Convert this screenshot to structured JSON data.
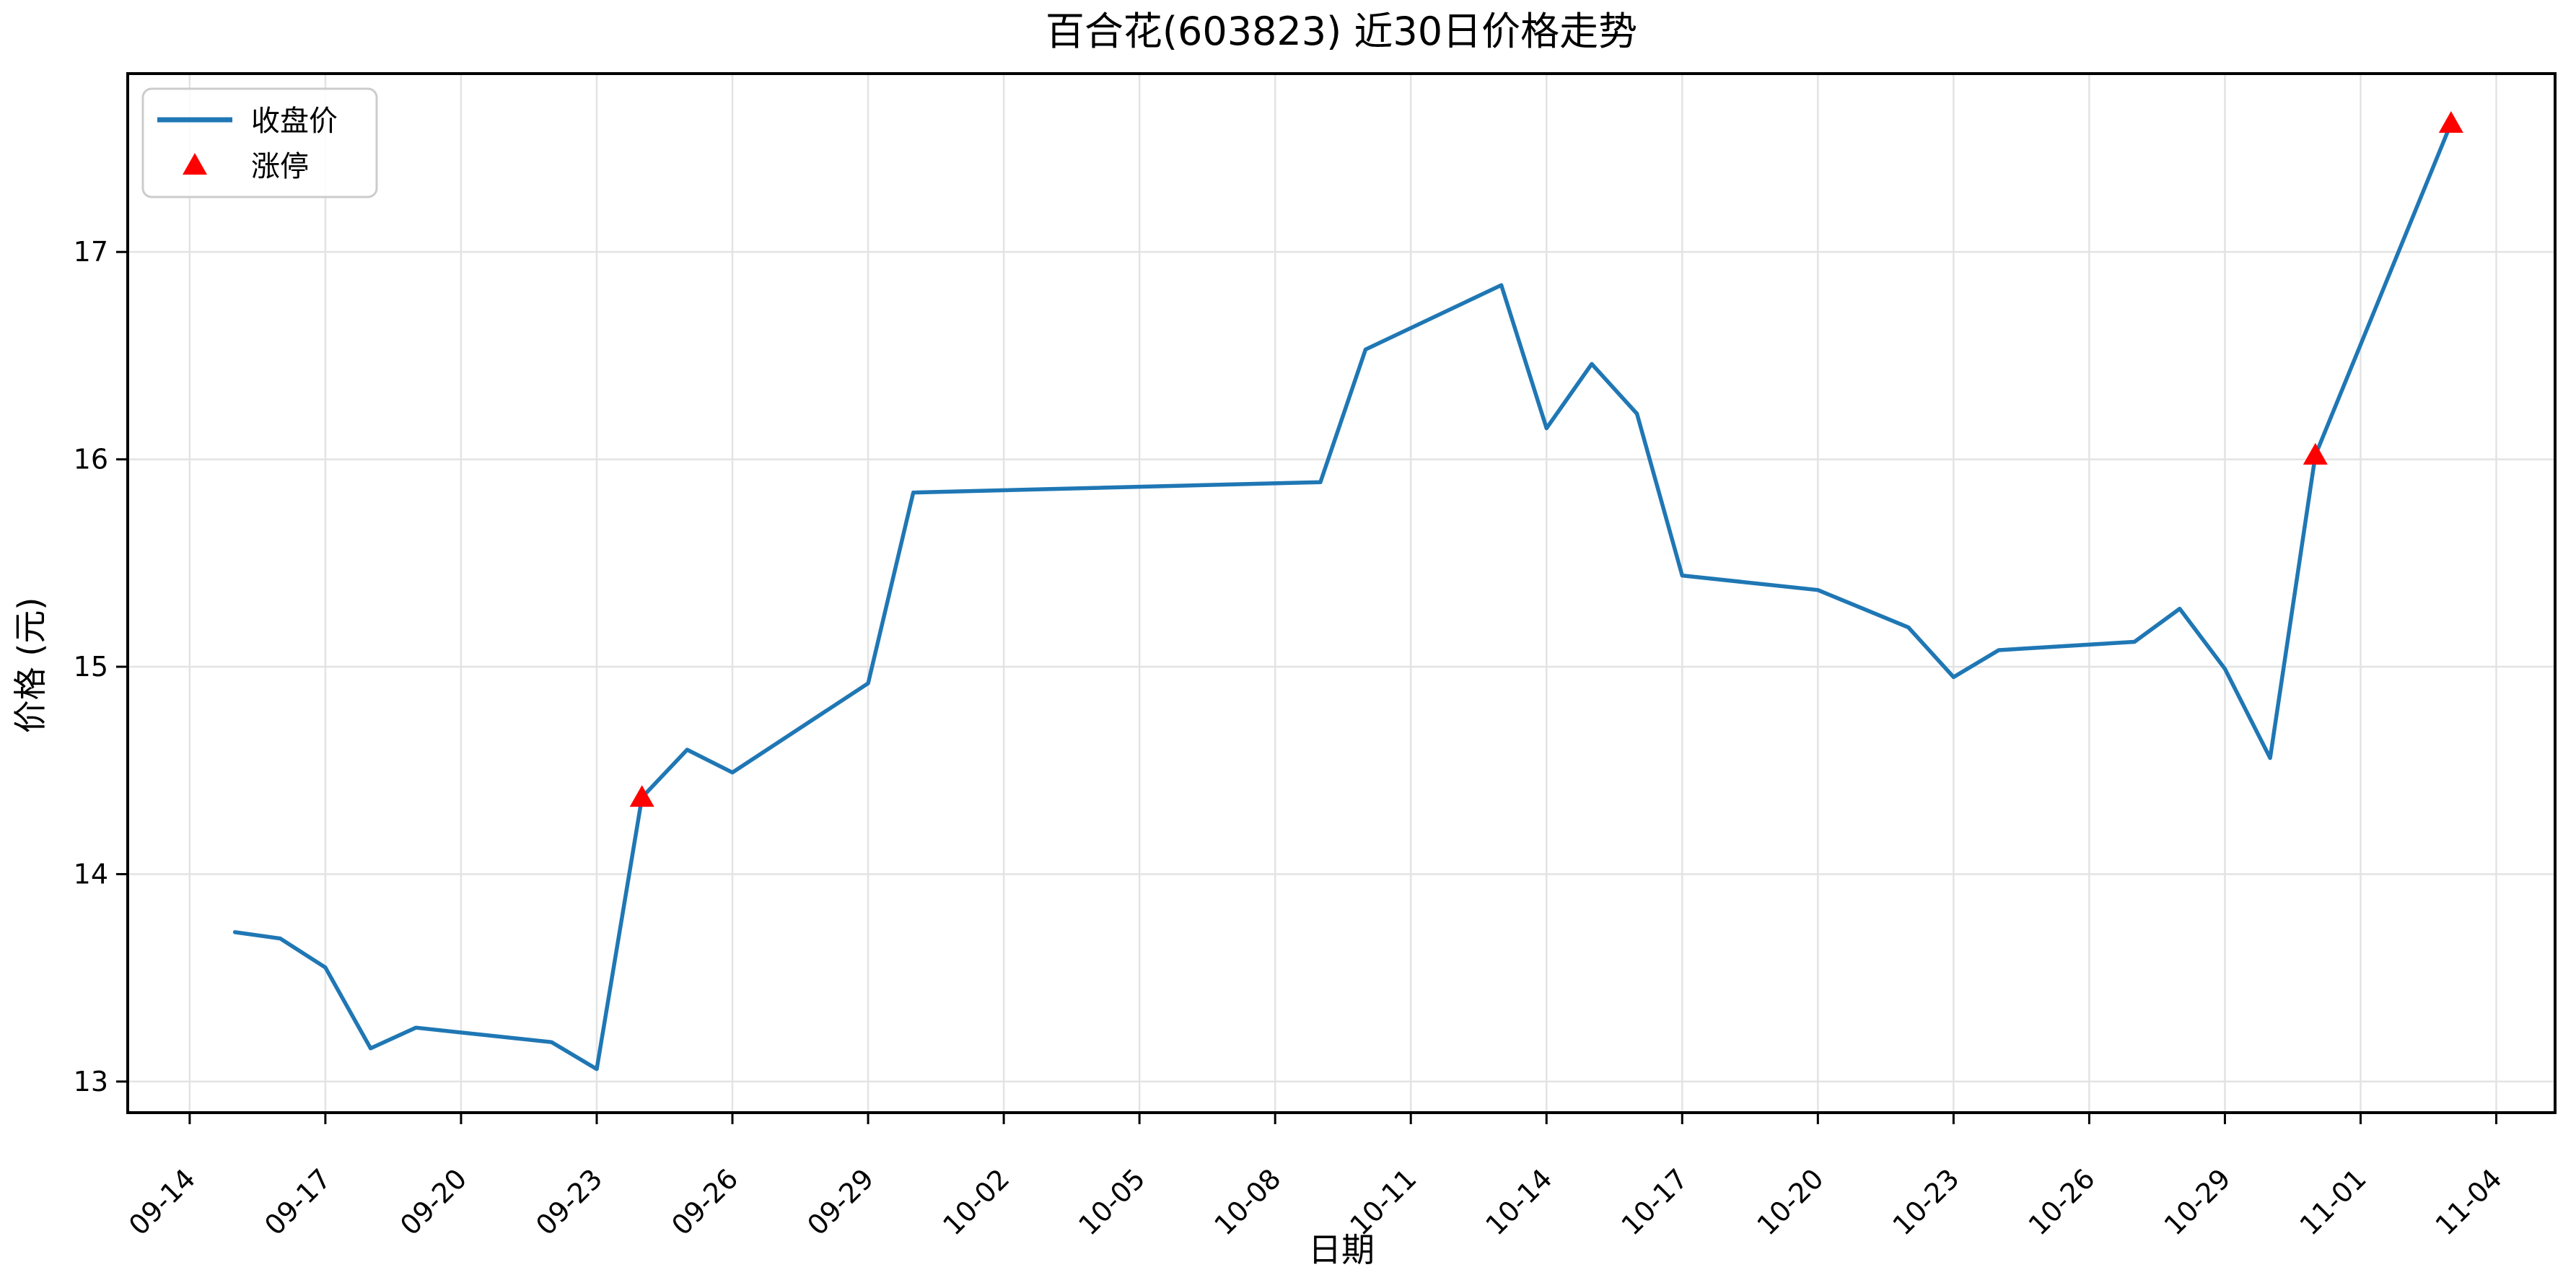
{
  "page": {
    "background": "#ffffff"
  },
  "chart_data": {
    "type": "line",
    "title": "百合花(603823) 近30日价格走势",
    "xlabel": "日期",
    "ylabel": "价格 (元)",
    "legend_labels": [
      "收盘价",
      "涨停"
    ],
    "legend_position": "upper left",
    "grid": true,
    "yticks": [
      13,
      14,
      15,
      16,
      17
    ],
    "ylim": [
      12.85,
      17.86
    ],
    "xlim_days": [
      -1.37,
      52.3
    ],
    "xticks": [
      "09-14",
      "09-17",
      "09-20",
      "09-23",
      "09-26",
      "09-29",
      "10-02",
      "10-05",
      "10-08",
      "10-11",
      "10-14",
      "10-17",
      "10-20",
      "10-23",
      "10-26",
      "10-29",
      "11-01",
      "11-04"
    ],
    "dates": [
      "09-15",
      "09-16",
      "09-17",
      "09-18",
      "09-19",
      "09-22",
      "09-23",
      "09-24",
      "09-25",
      "09-26",
      "09-29",
      "09-30",
      "10-09",
      "10-10",
      "10-13",
      "10-14",
      "10-15",
      "10-16",
      "10-17",
      "10-20",
      "10-21",
      "10-22",
      "10-23",
      "10-24",
      "10-27",
      "10-28",
      "10-29",
      "10-30",
      "10-31",
      "11-03"
    ],
    "series": [
      {
        "name": "收盘价",
        "values": [
          13.72,
          13.69,
          13.55,
          13.16,
          13.26,
          13.19,
          13.06,
          14.37,
          14.6,
          14.49,
          14.92,
          15.84,
          15.89,
          16.53,
          16.84,
          16.15,
          16.46,
          16.22,
          15.44,
          15.37,
          15.28,
          15.19,
          14.95,
          15.08,
          15.12,
          15.28,
          14.99,
          14.56,
          16.02,
          17.62
        ]
      }
    ],
    "limit_up_points": [
      {
        "date": "09-24",
        "price": 14.37
      },
      {
        "date": "10-31",
        "price": 16.02
      },
      {
        "date": "11-03",
        "price": 17.62
      }
    ],
    "line_color": "#1f77b4",
    "marker_color": "#ff0000",
    "grid_color": "#e3e3e3",
    "frame_color": "#000000",
    "legend_border_color": "#cccccc"
  }
}
